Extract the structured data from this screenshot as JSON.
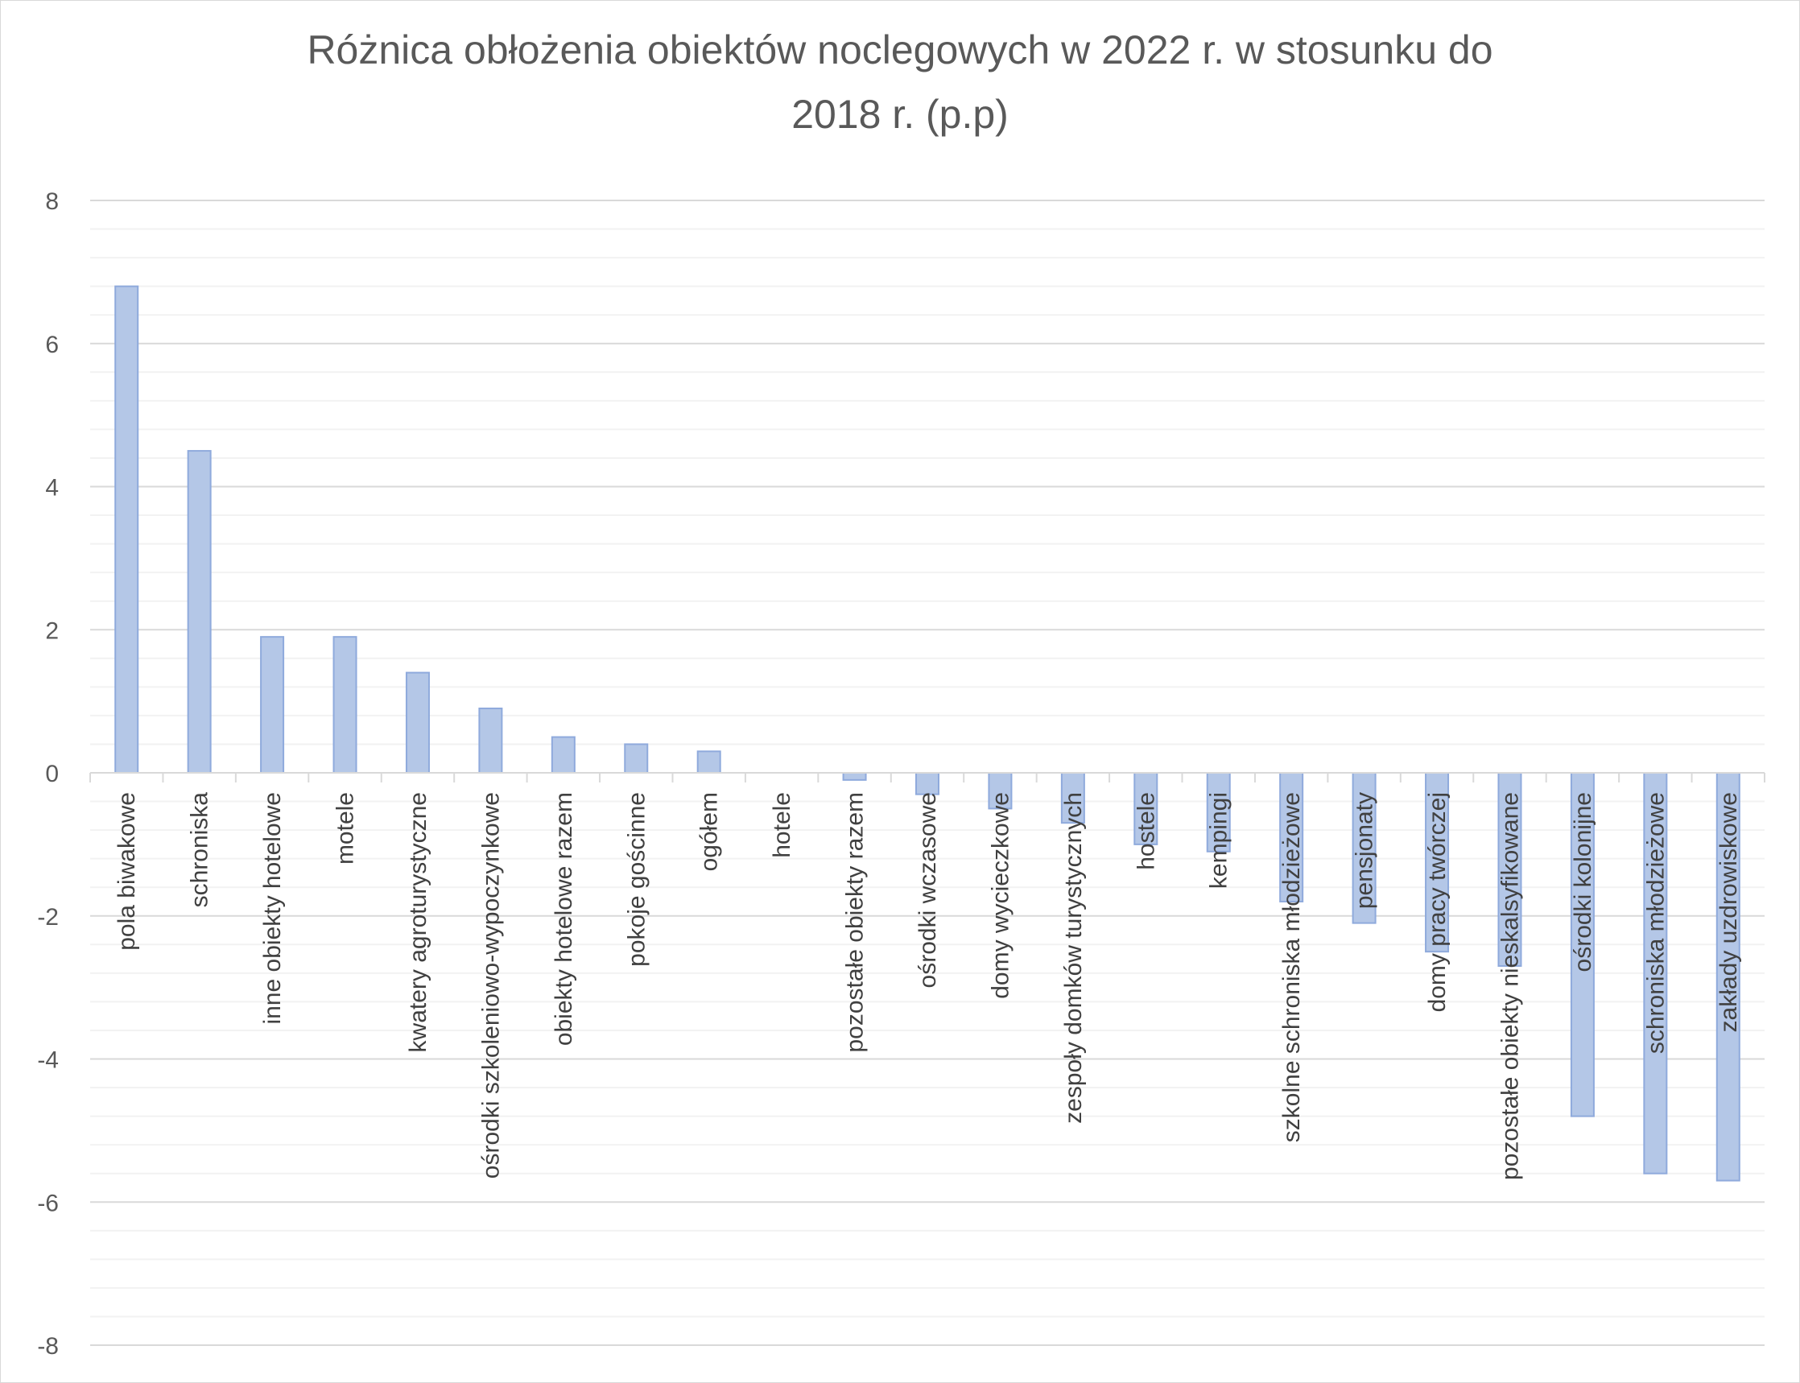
{
  "chart_data": {
    "type": "bar",
    "title": "Różnica obłożenia obiektów noclegowych w 2022 r. w stosunku do 2018 r. (p.p)",
    "title_lines": [
      "Różnica obłożenia obiektów noclegowych w 2022 r. w stosunku do",
      "2018 r. (p.p)"
    ],
    "xlabel": "",
    "ylabel": "",
    "ylim": [
      -8,
      8
    ],
    "yticks": [
      8,
      6,
      4,
      2,
      0,
      -2,
      -4,
      -6,
      -8
    ],
    "ytick_labels": [
      "8",
      "6",
      "4",
      "2",
      "0",
      "-2",
      "-4",
      "-6",
      "-8"
    ],
    "grid": true,
    "minor_grid": true,
    "legend": "none",
    "bar_color": "#b4c7e7",
    "bar_edge_color": "#8faadc",
    "categories": [
      "pola biwakowe",
      "schroniska",
      "inne obiekty hotelowe",
      "motele",
      "kwatery agroturystyczne",
      "ośrodki szkoleniowo-wypoczynkowe",
      "obiekty hotelowe razem",
      "pokoje gościnne",
      "ogółem",
      "hotele",
      "pozostałe obiekty razem",
      "ośrodki wczasowe",
      "domy wycieczkowe",
      "zespoły domków turystycznych",
      "hostele",
      "kempingi",
      "szkolne schroniska młodzieżowe",
      "pensjonaty",
      "domy pracy twórczej",
      "pozostałe obiekty nieskalsyfikowane",
      "ośrodki kolonijne",
      "schroniska młodzieżowe",
      "zakłady uzdrowiskowe"
    ],
    "values": [
      6.8,
      4.5,
      1.9,
      1.9,
      1.4,
      0.9,
      0.5,
      0.4,
      0.3,
      0.0,
      -0.1,
      -0.3,
      -0.5,
      -0.7,
      -1.0,
      -1.1,
      -1.8,
      -2.1,
      -2.5,
      -2.7,
      -4.8,
      -5.6,
      -5.7
    ]
  }
}
